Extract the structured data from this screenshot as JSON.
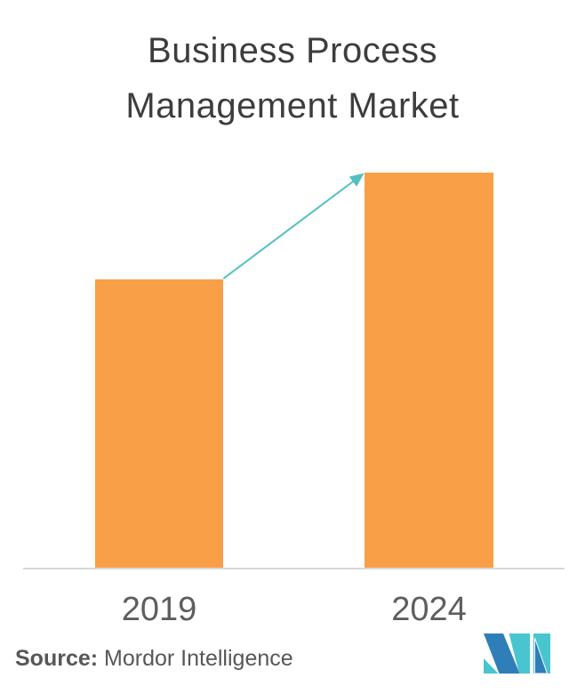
{
  "chart_data": {
    "type": "bar",
    "title": "Business Process Management Market",
    "categories": [
      "2019",
      "2024"
    ],
    "values": [
      73,
      100
    ],
    "xlabel": "",
    "ylabel": "",
    "ylim": [
      0,
      110
    ],
    "grid": false,
    "legend": null,
    "bar_color": "#F99F48",
    "arrow_color": "#54BFC3",
    "annotation": "growth arrow from 2019 bar top to 2024 bar top"
  },
  "footer": {
    "source_label": "Source:",
    "source_value": "Mordor Intelligence"
  },
  "logo": {
    "name": "mordor-intelligence-logo",
    "color_blue": "#2F7EB7",
    "color_teal": "#49C5CF"
  },
  "colors": {
    "background": "#FFFFFF",
    "title_text": "#3D3D3D",
    "axis_label_text": "#5E5E5E",
    "axis_line": "#D8D8D8",
    "source_text": "#57575A"
  }
}
